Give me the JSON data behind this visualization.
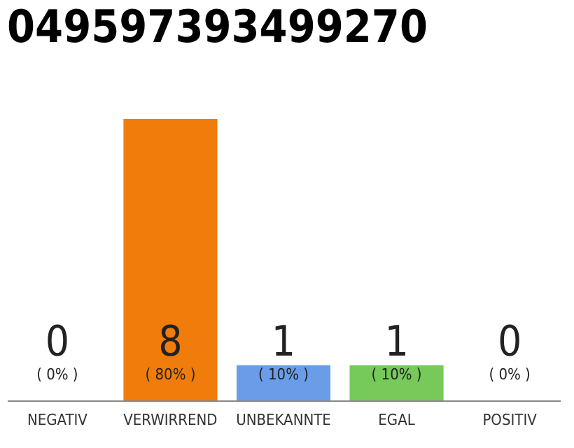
{
  "chart_data": {
    "type": "bar",
    "title": "049597393499270",
    "categories": [
      "NEGATIV",
      "VERWIRREND",
      "UNBEKANNTE",
      "EGAL",
      "POSITIV"
    ],
    "values": [
      0,
      80,
      10,
      10,
      0
    ],
    "colors": [
      "#9e9e9e",
      "#f07c0c",
      "#6a9de8",
      "#77c95a",
      "#9e9e9e"
    ],
    "value_labels": [
      "( 0% )",
      "( 80% )",
      "( 10% )",
      "( 10% )",
      "( 0% )"
    ],
    "annotations": [
      "0",
      "8",
      "1",
      "1",
      "0"
    ],
    "grid": false
  }
}
